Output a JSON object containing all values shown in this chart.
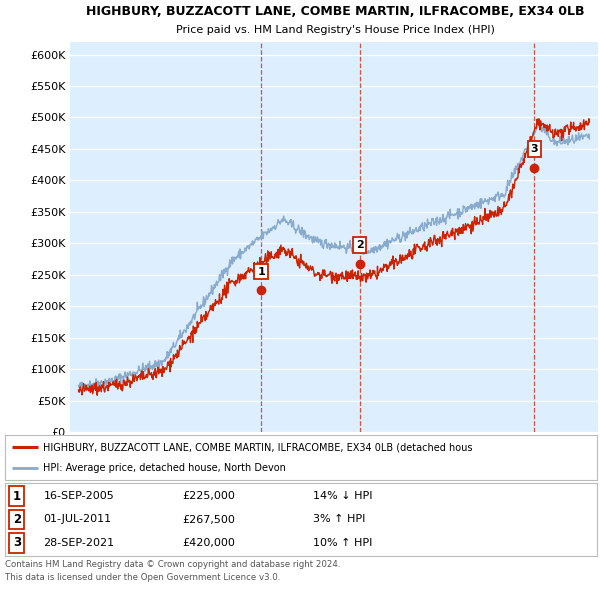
{
  "title1": "HIGHBURY, BUZZACOTT LANE, COMBE MARTIN, ILFRACOMBE, EX34 0LB",
  "title2": "Price paid vs. HM Land Registry's House Price Index (HPI)",
  "ytick_vals": [
    0,
    50000,
    100000,
    150000,
    200000,
    250000,
    300000,
    350000,
    400000,
    450000,
    500000,
    550000,
    600000
  ],
  "ylabel_ticks": [
    "£0",
    "£50K",
    "£100K",
    "£150K",
    "£200K",
    "£250K",
    "£300K",
    "£350K",
    "£400K",
    "£450K",
    "£500K",
    "£550K",
    "£600K"
  ],
  "xmin": 1994.5,
  "xmax": 2025.5,
  "ymin": 0,
  "ymax": 620000,
  "sale_years": [
    2005.72,
    2011.5,
    2021.75
  ],
  "sale_prices": [
    225000,
    267500,
    420000
  ],
  "sale_labels": [
    "1",
    "2",
    "3"
  ],
  "sale_info": [
    {
      "num": "1",
      "date": "16-SEP-2005",
      "price": "£225,000",
      "hpi": "14% ↓ HPI"
    },
    {
      "num": "2",
      "date": "01-JUL-2011",
      "price": "£267,500",
      "hpi": "3% ↑ HPI"
    },
    {
      "num": "3",
      "date": "28-SEP-2021",
      "price": "£420,000",
      "hpi": "10% ↑ HPI"
    }
  ],
  "legend_line1": "HIGHBURY, BUZZACOTT LANE, COMBE MARTIN, ILFRACOMBE, EX34 0LB (detached hous",
  "legend_line2": "HPI: Average price, detached house, North Devon",
  "footer1": "Contains HM Land Registry data © Crown copyright and database right 2024.",
  "footer2": "This data is licensed under the Open Government Licence v3.0.",
  "chart_bg": "#ddeeff",
  "fig_bg": "#ffffff",
  "red": "#cc2200",
  "blue": "#88aacc",
  "grid_color": "#ffffff",
  "vline_color": "#cc2200",
  "note_bg": "#ddeeff"
}
